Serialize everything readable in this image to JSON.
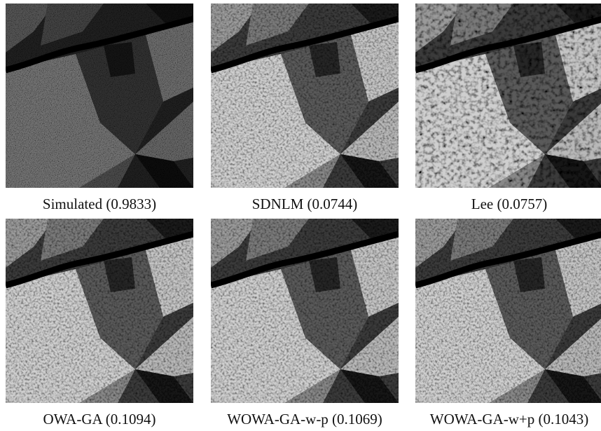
{
  "panels": [
    {
      "caption": "Simulated (0.9833)"
    },
    {
      "caption": "SDNLM (0.0744)"
    },
    {
      "caption": "Lee (0.0757)"
    },
    {
      "caption": "OWA-GA (0.1094)"
    },
    {
      "caption": "WOWA-GA-w-p (0.1069)"
    },
    {
      "caption": "WOWA-GA-w+p (0.1043)"
    }
  ]
}
